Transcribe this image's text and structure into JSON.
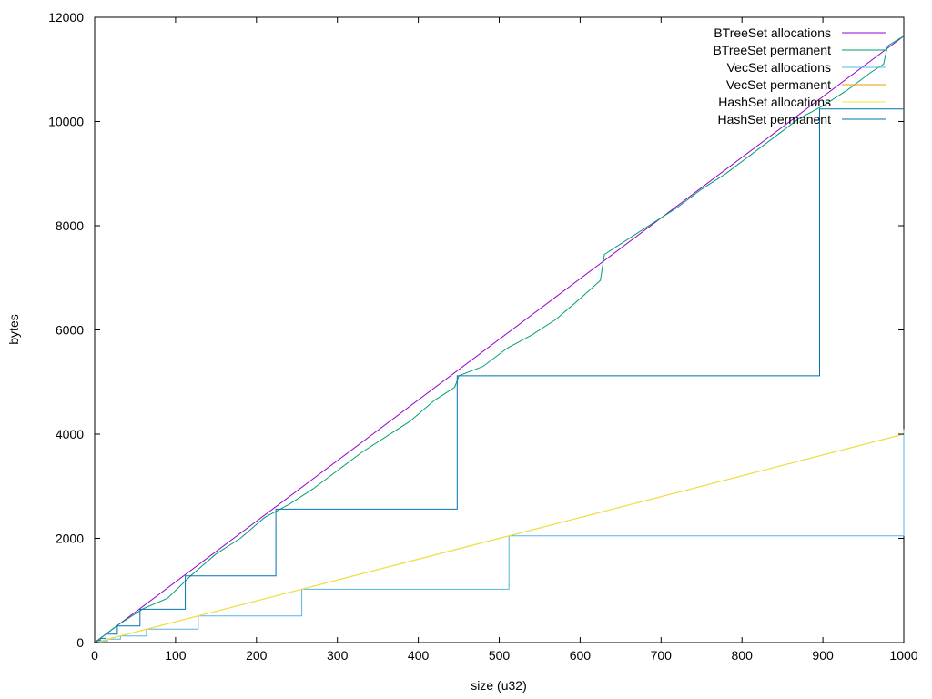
{
  "chart_data": {
    "type": "line",
    "xlabel": "size (u32)",
    "ylabel": "bytes",
    "xlim": [
      0,
      1000
    ],
    "ylim": [
      0,
      12000
    ],
    "xticks": [
      0,
      100,
      200,
      300,
      400,
      500,
      600,
      700,
      800,
      900,
      1000
    ],
    "yticks": [
      0,
      2000,
      4000,
      6000,
      8000,
      10000,
      12000
    ],
    "grid": false,
    "legend_position": "top-right",
    "series": [
      {
        "name": "BTreeSet allocations",
        "color": "#9400d3",
        "kind": "line",
        "x": [
          0,
          1000
        ],
        "y": [
          0,
          11640
        ]
      },
      {
        "name": "BTreeSet permanent",
        "color": "#009e73",
        "kind": "line",
        "x": [
          0,
          10,
          30,
          60,
          90,
          120,
          150,
          180,
          210,
          240,
          270,
          300,
          330,
          360,
          390,
          420,
          445,
          450,
          480,
          510,
          540,
          570,
          600,
          625,
          630,
          660,
          690,
          720,
          750,
          780,
          810,
          840,
          870,
          900,
          930,
          960,
          975,
          980,
          1000
        ],
        "y": [
          0,
          120,
          350,
          650,
          850,
          1300,
          1700,
          2000,
          2400,
          2650,
          2950,
          3300,
          3650,
          3950,
          4250,
          4650,
          4900,
          5120,
          5300,
          5650,
          5900,
          6200,
          6600,
          6950,
          7450,
          7750,
          8050,
          8350,
          8700,
          9000,
          9350,
          9700,
          10050,
          10300,
          10600,
          10950,
          11100,
          11450,
          11640
        ]
      },
      {
        "name": "VecSet allocations",
        "color": "#56b4e9",
        "kind": "step",
        "x": [
          0,
          8,
          16,
          32,
          64,
          128,
          256,
          512,
          1000
        ],
        "y": [
          0,
          32,
          64,
          128,
          256,
          512,
          1024,
          2048,
          4096
        ]
      },
      {
        "name": "VecSet permanent",
        "color": "#e69f00",
        "kind": "line",
        "x": [
          0,
          1000
        ],
        "y": [
          0,
          4000
        ]
      },
      {
        "name": "HashSet allocations",
        "color": "#f0e442",
        "kind": "line",
        "x": [
          0,
          1000
        ],
        "y": [
          0,
          4000
        ]
      },
      {
        "name": "HashSet permanent",
        "color": "#0072b2",
        "kind": "step",
        "x": [
          0,
          3,
          7,
          14,
          28,
          56,
          112,
          224,
          448,
          896,
          1000
        ],
        "y": [
          0,
          40,
          80,
          160,
          320,
          640,
          1280,
          2560,
          5120,
          10240,
          10240
        ]
      }
    ]
  }
}
